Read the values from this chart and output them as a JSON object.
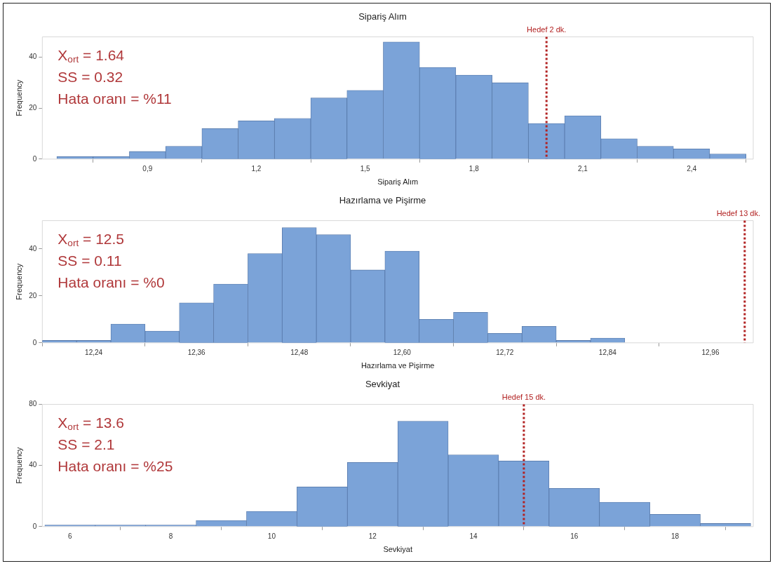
{
  "chart_data": [
    {
      "type": "histogram",
      "title": "Sipariş Alım",
      "xlabel": "Sipariş Alım",
      "ylabel": "Frequency",
      "bins": [
        0.65,
        0.75,
        0.85,
        0.95,
        1.05,
        1.15,
        1.25,
        1.35,
        1.45,
        1.55,
        1.65,
        1.75,
        1.85,
        1.95,
        2.05,
        2.15,
        2.25,
        2.35,
        2.45,
        2.55
      ],
      "values": [
        1,
        1,
        3,
        5,
        12,
        15,
        16,
        24,
        27,
        46,
        36,
        33,
        30,
        14,
        17,
        8,
        5,
        4,
        2
      ],
      "color": "#7ba3d8",
      "xlim": [
        0.61,
        2.57
      ],
      "xticks": [
        {
          "value": 0.9,
          "label": "0,9"
        },
        {
          "value": 1.2,
          "label": "1,2"
        },
        {
          "value": 1.5,
          "label": "1,5"
        },
        {
          "value": 1.8,
          "label": "1,8"
        },
        {
          "value": 2.1,
          "label": "2,1"
        },
        {
          "value": 2.4,
          "label": "2,4"
        }
      ],
      "ylim": [
        0,
        48
      ],
      "yticks": [
        0,
        20,
        40
      ],
      "ref_lines": [
        {
          "axis": "x",
          "value": 2,
          "label": "Hedef 2 dk.",
          "color": "#b22222",
          "line_style": "dotted"
        }
      ],
      "annotations": [
        "X$_{ort}$ = 1.64",
        "SS = 0.32",
        "Hata oranı = %11"
      ],
      "grid": false,
      "legend": false
    },
    {
      "type": "histogram",
      "title": "Hazırlama ve Pişirme",
      "xlabel": "Hazırlama ve Pişirme",
      "ylabel": "Frequency",
      "bins": [
        12.18,
        12.22,
        12.26,
        12.3,
        12.34,
        12.38,
        12.42,
        12.46,
        12.5,
        12.54,
        12.58,
        12.62,
        12.66,
        12.7,
        12.74,
        12.78,
        12.82,
        12.86
      ],
      "values": [
        1,
        1,
        8,
        5,
        17,
        25,
        38,
        49,
        46,
        31,
        39,
        10,
        13,
        4,
        7,
        1,
        2
      ],
      "color": "#7ba3d8",
      "xlim": [
        12.18,
        13.01
      ],
      "xticks": [
        {
          "value": 12.24,
          "label": "12,24"
        },
        {
          "value": 12.36,
          "label": "12,36"
        },
        {
          "value": 12.48,
          "label": "12,48"
        },
        {
          "value": 12.6,
          "label": "12,60"
        },
        {
          "value": 12.72,
          "label": "12,72"
        },
        {
          "value": 12.84,
          "label": "12,84"
        },
        {
          "value": 12.96,
          "label": "12,96"
        }
      ],
      "ylim": [
        0,
        52
      ],
      "yticks": [
        0,
        20,
        40
      ],
      "ref_lines": [
        {
          "axis": "x",
          "value": 13,
          "label": "Hedef 13 dk.",
          "color": "#b22222",
          "line_style": "dotted"
        }
      ],
      "annotations": [
        "X$_{ort}$ = 12.5",
        "SS = 0.11",
        "Hata oranı = %0"
      ],
      "grid": false,
      "legend": false
    },
    {
      "type": "histogram",
      "title": "Sevkiyat",
      "xlabel": "Sevkiyat",
      "ylabel": "Frequency",
      "bins": [
        5.5,
        6.5,
        7.5,
        8.5,
        9.5,
        10.5,
        11.5,
        12.5,
        13.5,
        14.5,
        15.5,
        16.5,
        17.5,
        18.5,
        19.5
      ],
      "values": [
        1,
        1,
        1,
        4,
        10,
        26,
        42,
        69,
        47,
        43,
        25,
        16,
        8,
        2
      ],
      "color": "#7ba3d8",
      "xlim": [
        5.45,
        19.55
      ],
      "xticks": [
        6,
        8,
        10,
        12,
        14,
        16,
        18
      ],
      "ylim": [
        0,
        80
      ],
      "yticks": [
        0,
        40,
        80
      ],
      "ref_lines": [
        {
          "axis": "x",
          "value": 15,
          "label": "Hedef 15 dk.",
          "color": "#b22222",
          "line_style": "dotted"
        }
      ],
      "annotations": [
        "X$_{ort}$ = 13.6",
        "SS = 2.1",
        "Hata oranı = %25"
      ],
      "grid": false,
      "legend": false
    }
  ]
}
